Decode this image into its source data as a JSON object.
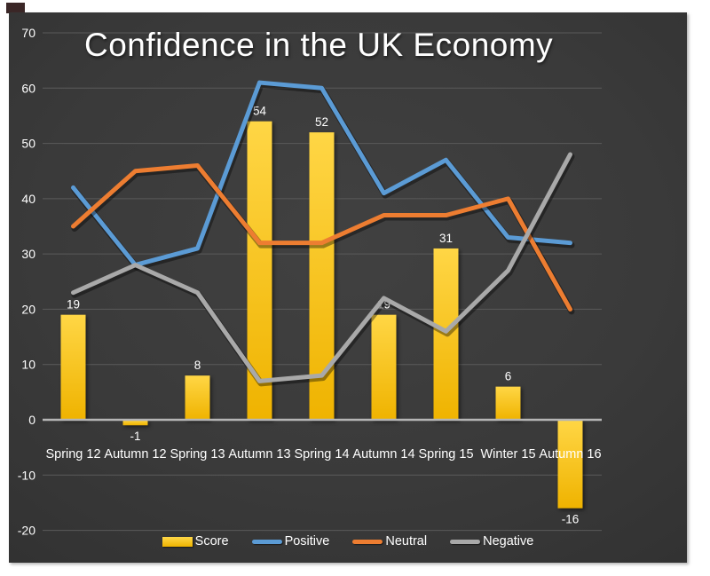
{
  "title": "Confidence in the UK Economy",
  "colors": {
    "background_panel": "#383838",
    "score_bar": "#FFC000",
    "positive_line": "#5B9BD5",
    "neutral_line": "#ED7D31",
    "negative_line": "#A9A9A9",
    "gridline": "#5a5a5a",
    "zero_axis": "#b5b5b5",
    "text": "#ffffff"
  },
  "chart_data": {
    "type": "bar",
    "subtype": "bar-line combo",
    "title": "Confidence in the UK Economy",
    "categories": [
      "Spring 12",
      "Autumn 12",
      "Spring 13",
      "Autumn 13",
      "Spring 14",
      "Autumn 14",
      "Spring 15",
      "Winter 15",
      "Autumn 16"
    ],
    "series": [
      {
        "name": "Score",
        "type": "bar",
        "color": "#FFC000",
        "values": [
          19,
          -1,
          8,
          54,
          52,
          19,
          31,
          6,
          -16
        ],
        "data_labels": [
          "19",
          "-1",
          "8",
          "54",
          "52",
          "19",
          "31",
          "6",
          "-16"
        ]
      },
      {
        "name": "Positive",
        "type": "line",
        "color": "#5B9BD5",
        "values": [
          42,
          28,
          31,
          61,
          60,
          41,
          47,
          33,
          32
        ]
      },
      {
        "name": "Neutral",
        "type": "line",
        "color": "#ED7D31",
        "values": [
          35,
          45,
          46,
          32,
          32,
          37,
          37,
          40,
          20
        ]
      },
      {
        "name": "Negative",
        "type": "line",
        "color": "#A9A9A9",
        "values": [
          23,
          28,
          23,
          7,
          8,
          22,
          16,
          27,
          48
        ]
      }
    ],
    "xlabel": "",
    "ylabel": "",
    "ylim": [
      -20,
      70
    ],
    "y_ticks": [
      70,
      60,
      50,
      40,
      30,
      20,
      10,
      0,
      -10,
      -20
    ],
    "grid": true,
    "legend_position": "bottom",
    "legend_entries": [
      "Score",
      "Positive",
      "Neutral",
      "Negative"
    ]
  }
}
